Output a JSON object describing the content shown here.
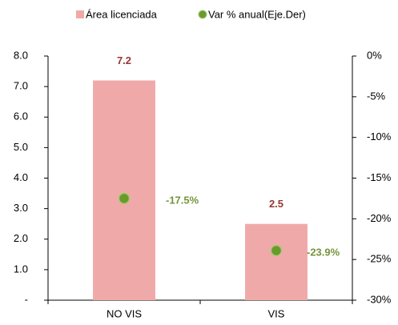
{
  "chart_data": {
    "type": "bar",
    "categories": [
      "NO VIS",
      "VIS"
    ],
    "series": [
      {
        "name": "Área licenciada",
        "type": "bar",
        "color": "#f0a9a9",
        "label_color": "#953735",
        "values": [
          7.2,
          2.5
        ]
      },
      {
        "name": "Var % anual(Eje.Der)",
        "type": "scatter",
        "axis": "y2",
        "color": "#6b9a2c",
        "label_color": "#77933c",
        "values": [
          -17.5,
          -23.9
        ],
        "value_labels": [
          "-17.5%",
          "-23.9%"
        ]
      }
    ],
    "ylim": [
      0,
      8
    ],
    "yticks": [
      {
        "value": 0,
        "label": "-"
      },
      {
        "value": 1,
        "label": "1.0"
      },
      {
        "value": 2,
        "label": "2.0"
      },
      {
        "value": 3,
        "label": "3.0"
      },
      {
        "value": 4,
        "label": "4.0"
      },
      {
        "value": 5,
        "label": "5.0"
      },
      {
        "value": 6,
        "label": "6.0"
      },
      {
        "value": 7,
        "label": "7.0"
      },
      {
        "value": 8,
        "label": "8.0"
      }
    ],
    "y2lim": [
      -30,
      0
    ],
    "y2ticks": [
      {
        "value": -30,
        "label": "-30%"
      },
      {
        "value": -25,
        "label": "-25%"
      },
      {
        "value": -20,
        "label": "-20%"
      },
      {
        "value": -15,
        "label": "-15%"
      },
      {
        "value": -10,
        "label": "-10%"
      },
      {
        "value": -5,
        "label": "-5%"
      },
      {
        "value": 0,
        "label": "0%"
      }
    ],
    "legend": "top",
    "grid": false
  }
}
